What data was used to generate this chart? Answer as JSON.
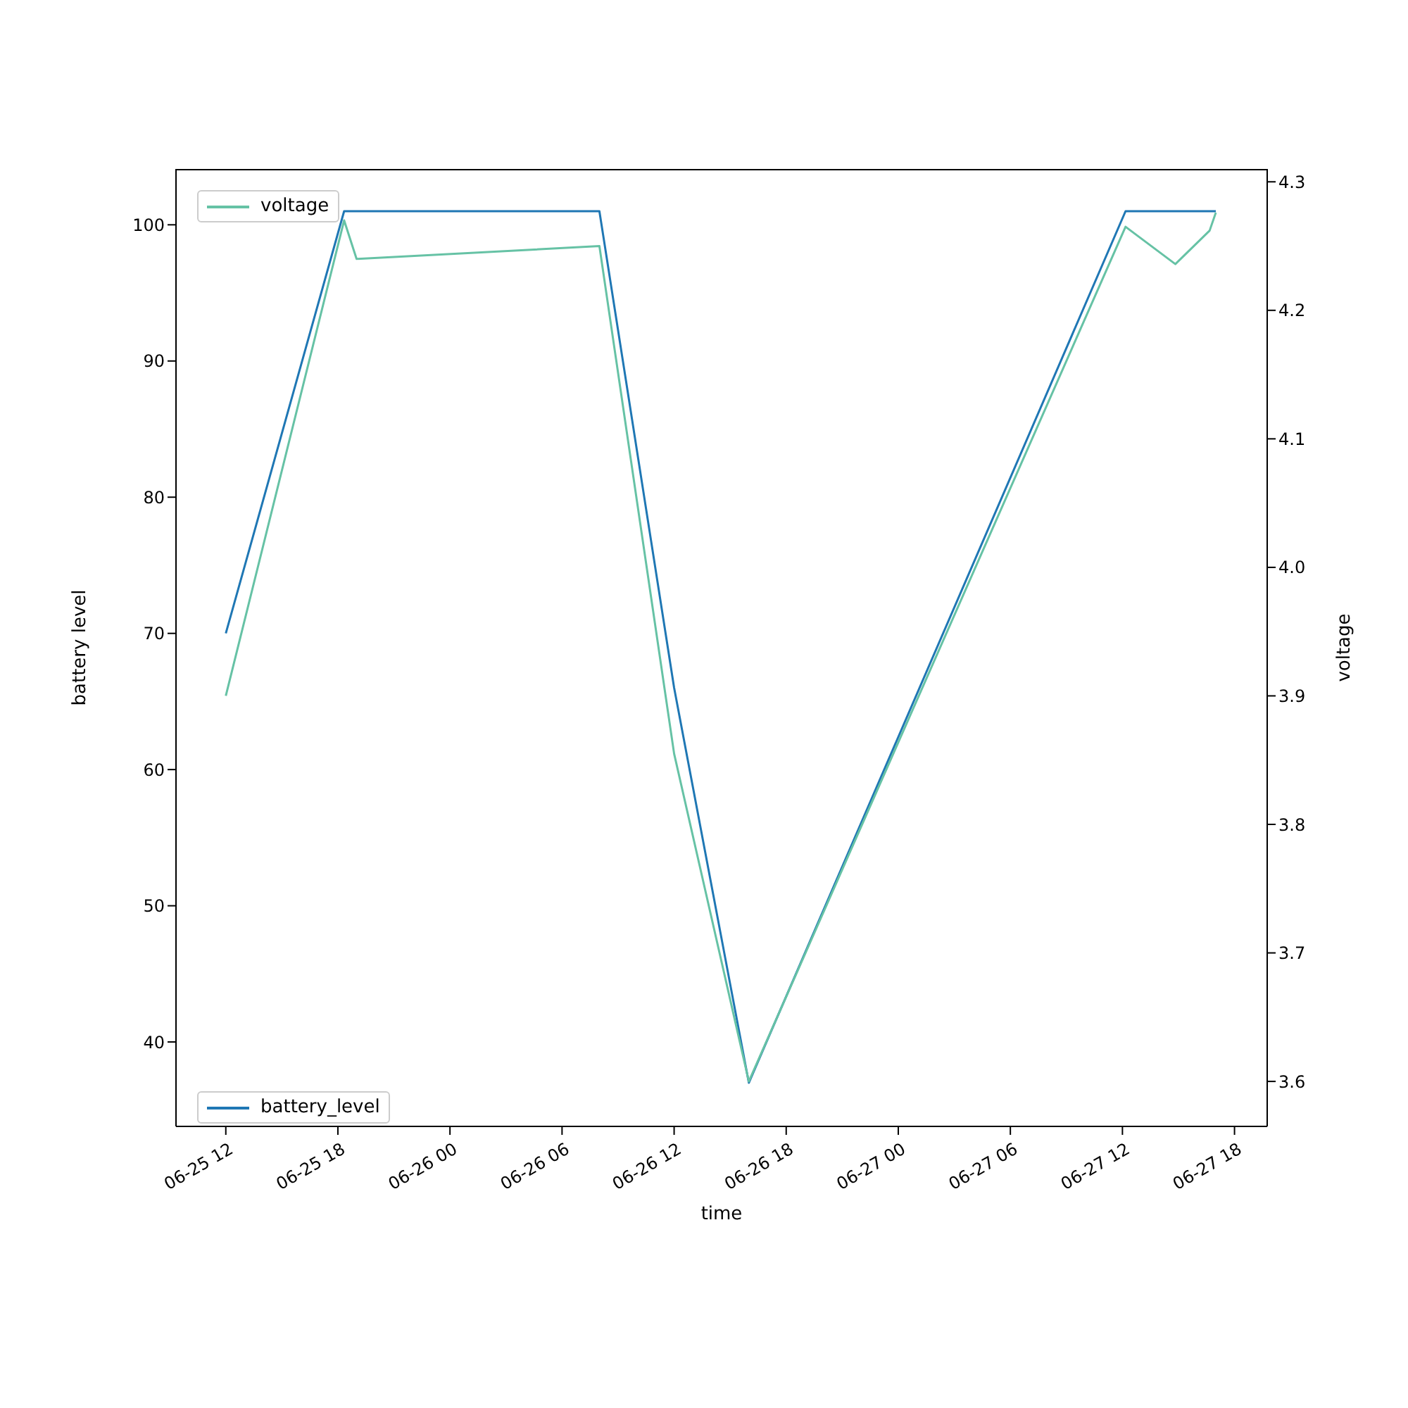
{
  "chart_data": {
    "type": "line",
    "xlabel": "time",
    "ylabel": "battery level",
    "y2label": "voltage",
    "xlim": [
      "--06-25T09:20",
      "--06-27T19:45"
    ],
    "xticks": [
      {
        "value": "--06-25T12:00",
        "label": "06-25 12"
      },
      {
        "value": "--06-25T18:00",
        "label": "06-25 18"
      },
      {
        "value": "--06-26T00:00",
        "label": "06-26 00"
      },
      {
        "value": "--06-26T06:00",
        "label": "06-26 06"
      },
      {
        "value": "--06-26T12:00",
        "label": "06-26 12"
      },
      {
        "value": "--06-26T18:00",
        "label": "06-26 18"
      },
      {
        "value": "--06-27T00:00",
        "label": "06-27 00"
      },
      {
        "value": "--06-27T06:00",
        "label": "06-27 06"
      },
      {
        "value": "--06-27T12:00",
        "label": "06-27 12"
      },
      {
        "value": "--06-27T18:00",
        "label": "06-27 18"
      }
    ],
    "ylim": [
      33.8,
      104.1
    ],
    "yticks": [
      40,
      50,
      60,
      70,
      80,
      90,
      100
    ],
    "y2lim": [
      3.565,
      4.31
    ],
    "y2ticks": [
      3.6,
      3.7,
      3.8,
      3.9,
      {
        "value": 4,
        "label": "4.0"
      },
      4.1,
      4.2,
      4.3
    ],
    "legend": "left",
    "series": [
      {
        "name": "battery_level",
        "color": "#1f77b4",
        "x": [
          "--06-25T12:00",
          "--06-25T18:20",
          "--06-25T19:00",
          "--06-26T08:00",
          "--06-26T12:00",
          "--06-26T16:00",
          "--06-27T12:10",
          "--06-27T14:50",
          "--06-27T16:40",
          "--06-27T17:00"
        ],
        "values": [
          70,
          101,
          101,
          101,
          66,
          37,
          101,
          101,
          101,
          101
        ]
      },
      {
        "name": "voltage",
        "color": "#66c2a5",
        "axis": "y2",
        "x": [
          "--06-25T12:00",
          "--06-25T18:20",
          "--06-25T19:00",
          "--06-26T08:00",
          "--06-26T12:00",
          "--06-26T16:00",
          "--06-27T12:10",
          "--06-27T14:50",
          "--06-27T16:40",
          "--06-27T17:00"
        ],
        "values": [
          3.9,
          4.27,
          4.24,
          4.25,
          3.855,
          3.6,
          4.265,
          4.236,
          4.262,
          4.276
        ]
      }
    ]
  }
}
